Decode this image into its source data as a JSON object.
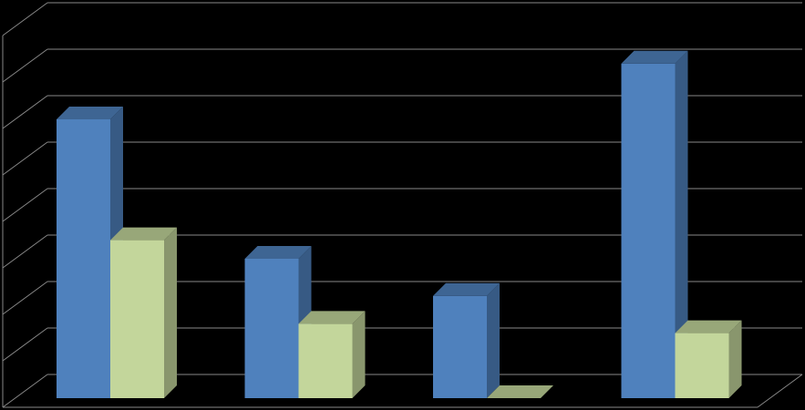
{
  "chart_data": {
    "type": "bar3d",
    "categories": [
      null,
      null,
      null,
      null
    ],
    "series": [
      {
        "color": "#4f81bd",
        "values": [
          6,
          3,
          2.2,
          7.2
        ]
      },
      {
        "color": "#c3d69b",
        "values": [
          3.4,
          1.6,
          0,
          1.4
        ]
      }
    ],
    "ylim": [
      0,
      8
    ],
    "yticks": [
      0,
      1,
      2,
      3,
      4,
      5,
      6,
      7,
      8
    ],
    "grid": true
  }
}
